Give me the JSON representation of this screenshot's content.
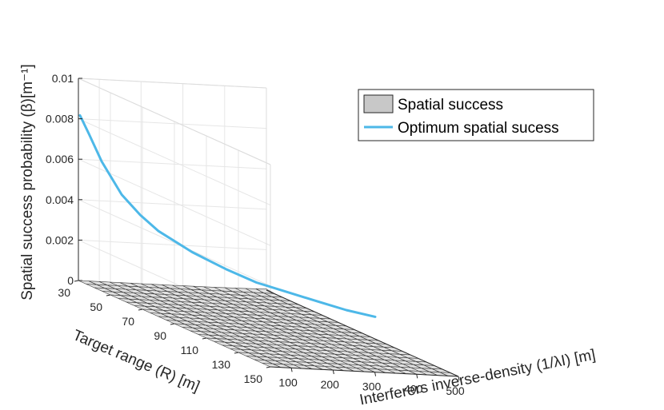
{
  "chart_data": {
    "type": "surface",
    "zlabel": "Spatial success probability (β)[m⁻¹]",
    "xlabel": "Interferers inverse-density (1/λI) [m]",
    "ylabel": "Target range (R) [m]",
    "x_ticks": [
      "100",
      "200",
      "300",
      "400",
      "500"
    ],
    "y_ticks": [
      "30",
      "50",
      "70",
      "90",
      "110",
      "130",
      "150"
    ],
    "z_ticks": [
      "0",
      "0.002",
      "0.004",
      "0.006",
      "0.008",
      "0.01"
    ],
    "xlim": [
      50,
      500
    ],
    "ylim": [
      30,
      150
    ],
    "zlim": [
      0,
      0.01
    ],
    "grid": true,
    "legend_position": "top-right",
    "series": [
      {
        "name": "Spatial success",
        "kind": "surface",
        "color": "#c8c8c8",
        "x_grid": [
          50,
          75,
          100,
          125,
          150,
          175,
          200,
          225,
          250,
          275,
          300,
          325,
          350,
          375,
          400,
          425,
          450,
          475,
          500
        ],
        "y_grid": [
          30,
          35,
          40,
          45,
          50,
          55,
          60,
          65,
          70,
          75,
          80,
          85,
          90,
          95,
          100,
          105,
          110,
          115,
          120,
          125,
          130,
          135,
          140,
          145,
          150
        ]
      },
      {
        "name": "Optimum spatial sucess",
        "kind": "line",
        "color": "#4db8e8",
        "points": [
          {
            "x": 50,
            "y": 31,
            "z": 0.0082
          },
          {
            "x": 60,
            "y": 34,
            "z": 0.0074
          },
          {
            "x": 75,
            "y": 38,
            "z": 0.0062
          },
          {
            "x": 100,
            "y": 44,
            "z": 0.0048
          },
          {
            "x": 125,
            "y": 49,
            "z": 0.004
          },
          {
            "x": 150,
            "y": 54,
            "z": 0.0034
          },
          {
            "x": 200,
            "y": 62,
            "z": 0.0027
          },
          {
            "x": 250,
            "y": 70,
            "z": 0.0022
          },
          {
            "x": 300,
            "y": 76,
            "z": 0.0018
          },
          {
            "x": 350,
            "y": 82,
            "z": 0.0016
          },
          {
            "x": 400,
            "y": 88,
            "z": 0.0014
          },
          {
            "x": 450,
            "y": 93,
            "z": 0.0012
          },
          {
            "x": 500,
            "y": 98,
            "z": 0.0011
          }
        ]
      }
    ]
  }
}
